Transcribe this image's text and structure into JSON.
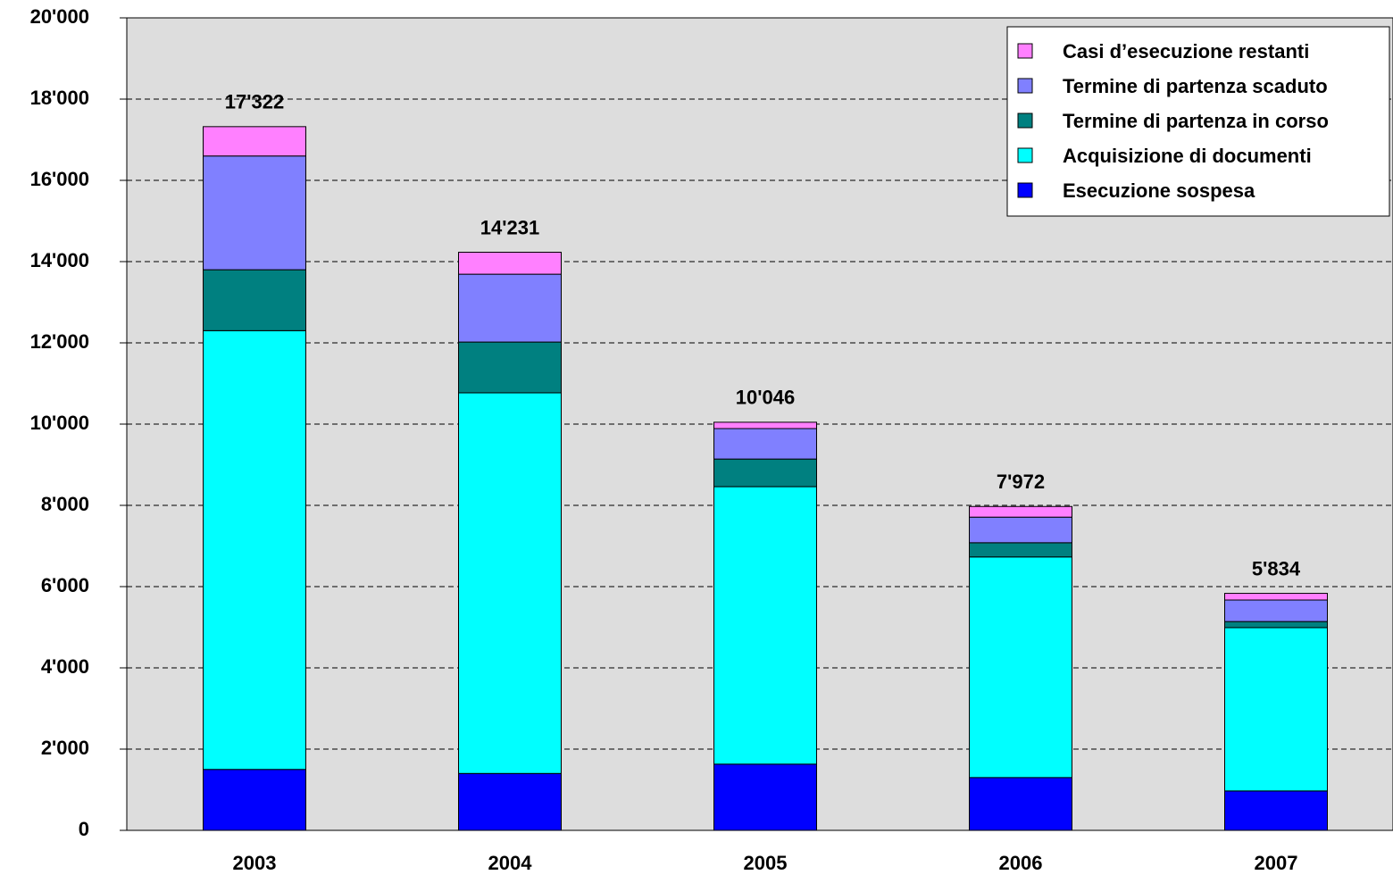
{
  "chart_data": {
    "type": "stacked_bar",
    "categories": [
      "2003",
      "2004",
      "2005",
      "2006",
      "2007"
    ],
    "series": [
      {
        "name": "Esecuzione sospesa",
        "color": "#0000ff",
        "values": [
          1500,
          1400,
          1630,
          1300,
          970
        ]
      },
      {
        "name": "Acquisizione di documenti",
        "color": "#00ffff",
        "values": [
          10800,
          9370,
          6830,
          5430,
          4020
        ]
      },
      {
        "name": "Termine di partenza in corso",
        "color": "#008080",
        "values": [
          1500,
          1250,
          680,
          350,
          150
        ]
      },
      {
        "name": "Termine di partenza scaduto",
        "color": "#8080ff",
        "values": [
          2800,
          1670,
          750,
          630,
          530
        ]
      },
      {
        "name": "Casi d’esecuzione restanti",
        "color": "#ff80ff",
        "values": [
          722,
          541,
          156,
          262,
          164
        ]
      }
    ],
    "totals": [
      17322,
      14231,
      10046,
      7972,
      5834
    ],
    "total_labels": [
      "17'322",
      "14'231",
      "10'046",
      "7'972",
      "5'834"
    ],
    "ylim": [
      0,
      20000
    ],
    "yticks": [
      0,
      {
        "value": 2000,
        "label": "2'000"
      },
      {
        "value": 4000,
        "label": "4'000"
      },
      {
        "value": 6000,
        "label": "6'000"
      },
      {
        "value": 8000,
        "label": "8'000"
      },
      {
        "value": 10000,
        "label": "10'000"
      },
      {
        "value": 12000,
        "label": "12'000"
      },
      {
        "value": 14000,
        "label": "14'000"
      },
      {
        "value": 16000,
        "label": "16'000"
      },
      {
        "value": 18000,
        "label": "18'000"
      },
      {
        "value": 20000,
        "label": "20'000"
      }
    ],
    "grid": true,
    "legend": "upper right"
  }
}
